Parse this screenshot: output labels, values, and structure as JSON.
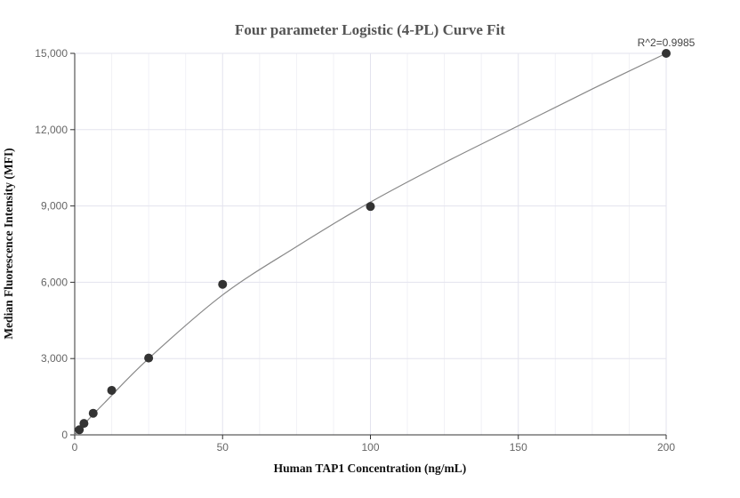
{
  "chart_data": {
    "type": "scatter",
    "title": "Four parameter Logistic (4-PL) Curve Fit",
    "xlabel": "Human TAP1 Concentration (ng/mL)",
    "ylabel": "Median Fluorescence Intensity (MFI)",
    "xlim": [
      0,
      200
    ],
    "ylim": [
      0,
      15000
    ],
    "x_ticks": [
      0,
      50,
      100,
      150,
      200
    ],
    "x_tick_labels": [
      "0",
      "50",
      "100",
      "150",
      "200"
    ],
    "y_ticks": [
      0,
      3000,
      6000,
      9000,
      12000,
      15000
    ],
    "y_tick_labels": [
      "0",
      "3,000",
      "6,000",
      "9,000",
      "12,000",
      "15,000"
    ],
    "grid": true,
    "series": [
      {
        "x": [
          1.5625,
          3.125,
          6.25,
          12.5,
          25,
          50,
          100,
          200
        ],
        "y": [
          200,
          450,
          850,
          1750,
          3020,
          5920,
          8980,
          15000
        ],
        "color": "#333333"
      }
    ],
    "fit_curve": {
      "type": "4PL",
      "x": [
        0,
        5,
        10,
        25,
        50,
        75,
        100,
        125,
        150,
        175,
        200
      ],
      "y": [
        0,
        650,
        1250,
        3000,
        5500,
        7400,
        9150,
        10700,
        12150,
        13600,
        15000
      ],
      "color": "#888888"
    },
    "annotations": [
      {
        "text": "R^2=0.9985"
      }
    ]
  }
}
